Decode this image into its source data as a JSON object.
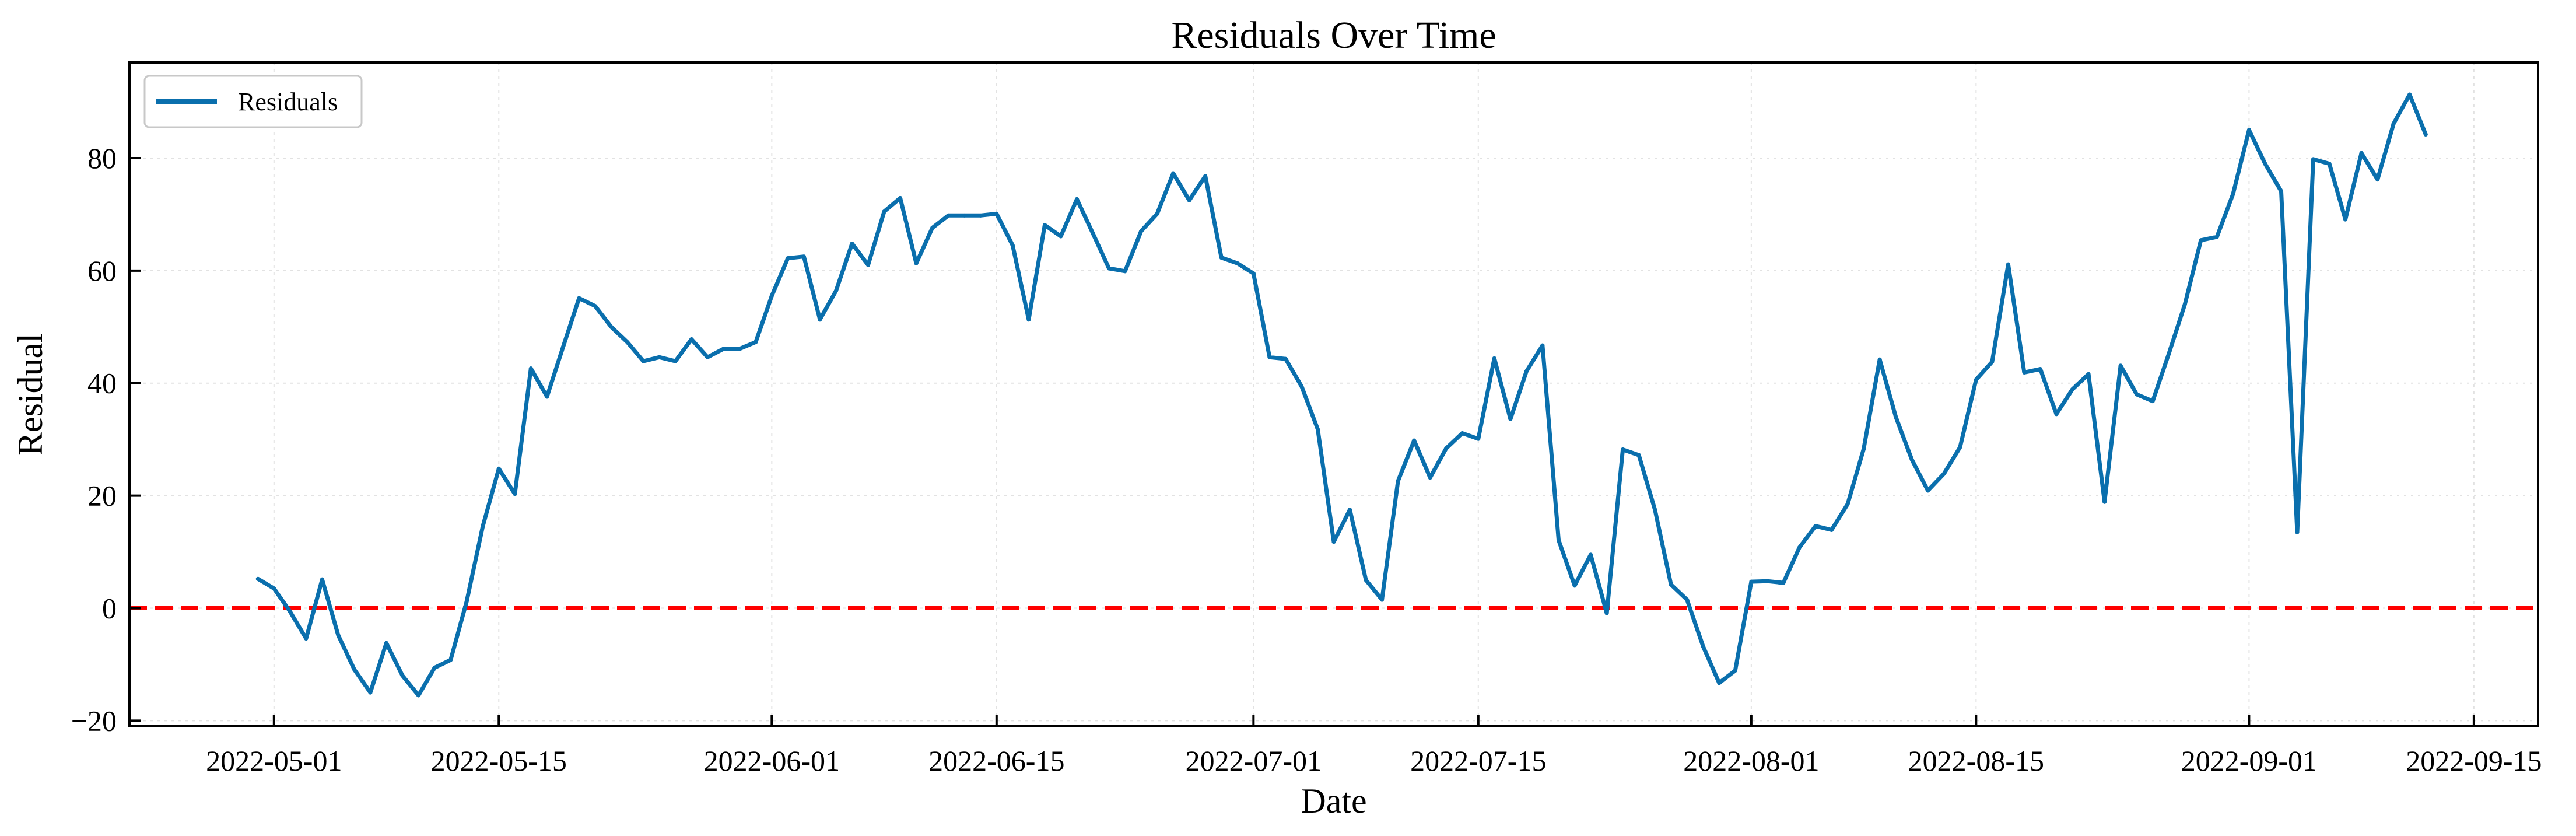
{
  "chart_data": {
    "type": "line",
    "title": "Residuals Over Time",
    "xlabel": "Date",
    "ylabel": "Residual",
    "xlim": [
      "2022-04-22",
      "2022-09-19"
    ],
    "ylim": [
      -21,
      97
    ],
    "x_ticks": [
      "2022-05-01",
      "2022-05-15",
      "2022-06-01",
      "2022-06-15",
      "2022-07-01",
      "2022-07-15",
      "2022-08-01",
      "2022-08-15",
      "2022-09-01",
      "2022-09-15"
    ],
    "y_ticks": [
      -20,
      0,
      20,
      40,
      60,
      80
    ],
    "grid": true,
    "legend_position": "upper-left",
    "reference_line": {
      "y": 0,
      "color": "#ff0000",
      "style": "dashed"
    },
    "colors": {
      "series": "#0a6fad",
      "reference": "#ff0000"
    },
    "series": [
      {
        "name": "Residuals",
        "x": [
          "2022-04-30",
          "2022-05-01",
          "2022-05-02",
          "2022-05-03",
          "2022-05-04",
          "2022-05-05",
          "2022-05-06",
          "2022-05-07",
          "2022-05-08",
          "2022-05-09",
          "2022-05-10",
          "2022-05-11",
          "2022-05-12",
          "2022-05-13",
          "2022-05-14",
          "2022-05-15",
          "2022-05-16",
          "2022-05-17",
          "2022-05-18",
          "2022-05-19",
          "2022-05-20",
          "2022-05-21",
          "2022-05-22",
          "2022-05-23",
          "2022-05-24",
          "2022-05-25",
          "2022-05-26",
          "2022-05-27",
          "2022-05-28",
          "2022-05-29",
          "2022-05-30",
          "2022-05-31",
          "2022-06-01",
          "2022-06-02",
          "2022-06-03",
          "2022-06-04",
          "2022-06-05",
          "2022-06-06",
          "2022-06-07",
          "2022-06-08",
          "2022-06-09",
          "2022-06-10",
          "2022-06-11",
          "2022-06-12",
          "2022-06-13",
          "2022-06-14",
          "2022-06-15",
          "2022-06-16",
          "2022-06-17",
          "2022-06-18",
          "2022-06-19",
          "2022-06-20",
          "2022-06-21",
          "2022-06-22",
          "2022-06-23",
          "2022-06-24",
          "2022-06-25",
          "2022-06-26",
          "2022-06-27",
          "2022-06-28",
          "2022-06-29",
          "2022-06-30",
          "2022-07-01",
          "2022-07-02",
          "2022-07-03",
          "2022-07-04",
          "2022-07-05",
          "2022-07-06",
          "2022-07-07",
          "2022-07-08",
          "2022-07-09",
          "2022-07-10",
          "2022-07-11",
          "2022-07-12",
          "2022-07-13",
          "2022-07-14",
          "2022-07-15",
          "2022-07-16",
          "2022-07-17",
          "2022-07-18",
          "2022-07-19",
          "2022-07-20",
          "2022-07-21",
          "2022-07-22",
          "2022-07-23",
          "2022-07-24",
          "2022-07-25",
          "2022-07-26",
          "2022-07-27",
          "2022-07-28",
          "2022-07-29",
          "2022-07-30",
          "2022-07-31",
          "2022-08-01",
          "2022-08-02",
          "2022-08-03",
          "2022-08-04",
          "2022-08-05",
          "2022-08-06",
          "2022-08-07",
          "2022-08-08",
          "2022-08-09",
          "2022-08-10",
          "2022-08-11",
          "2022-08-12",
          "2022-08-13",
          "2022-08-14",
          "2022-08-15",
          "2022-08-16",
          "2022-08-17",
          "2022-08-18",
          "2022-08-19",
          "2022-08-20",
          "2022-08-21",
          "2022-08-22",
          "2022-08-23",
          "2022-08-24",
          "2022-08-25",
          "2022-08-26",
          "2022-08-27",
          "2022-08-28",
          "2022-08-29",
          "2022-08-30",
          "2022-08-31",
          "2022-09-01",
          "2022-09-02",
          "2022-09-03",
          "2022-09-04",
          "2022-09-05",
          "2022-09-06",
          "2022-09-07",
          "2022-09-08",
          "2022-09-09",
          "2022-09-10",
          "2022-09-11",
          "2022-09-12"
        ],
        "values": [
          5.2,
          3.5,
          -0.6,
          -5.4,
          5.1,
          -4.8,
          -10.9,
          -15.0,
          -6.2,
          -12.0,
          -15.5,
          -10.6,
          -9.2,
          1.2,
          14.5,
          24.8,
          20.3,
          42.6,
          37.6,
          46.4,
          55.1,
          53.7,
          50.0,
          47.3,
          43.9,
          44.6,
          43.9,
          47.8,
          44.6,
          46.1,
          46.1,
          47.3,
          55.5,
          62.2,
          62.5,
          51.3,
          56.4,
          64.8,
          61.0,
          70.5,
          72.9,
          61.3,
          67.6,
          69.8,
          69.8,
          69.8,
          70.1,
          64.5,
          51.3,
          68.1,
          66.1,
          72.7,
          66.6,
          60.4,
          59.9,
          67.0,
          70.1,
          77.3,
          72.5,
          76.8,
          62.3,
          61.3,
          59.5,
          44.6,
          44.3,
          39.4,
          31.8,
          11.8,
          17.5,
          5.0,
          1.5,
          22.6,
          29.8,
          23.2,
          28.4,
          31.1,
          30.1,
          44.4,
          33.6,
          42.1,
          46.7,
          12.1,
          4.0,
          9.5,
          -0.9,
          28.2,
          27.2,
          17.5,
          4.2,
          1.5,
          -6.8,
          -13.3,
          -11.1,
          4.7,
          4.8,
          4.5,
          10.8,
          14.6,
          13.9,
          18.5,
          28.3,
          44.2,
          34.0,
          26.4,
          20.9,
          23.9,
          28.6,
          40.6,
          43.8,
          61.1,
          41.9,
          42.5,
          34.5,
          38.9,
          41.6,
          18.9,
          43.1,
          38.0,
          36.8,
          45.2,
          54.0,
          65.4,
          66.0,
          73.6,
          85.0,
          79.0,
          74.1,
          13.5,
          79.8,
          79.0,
          69.1,
          80.9,
          76.2,
          86.1,
          91.3,
          84.2
        ]
      }
    ]
  }
}
